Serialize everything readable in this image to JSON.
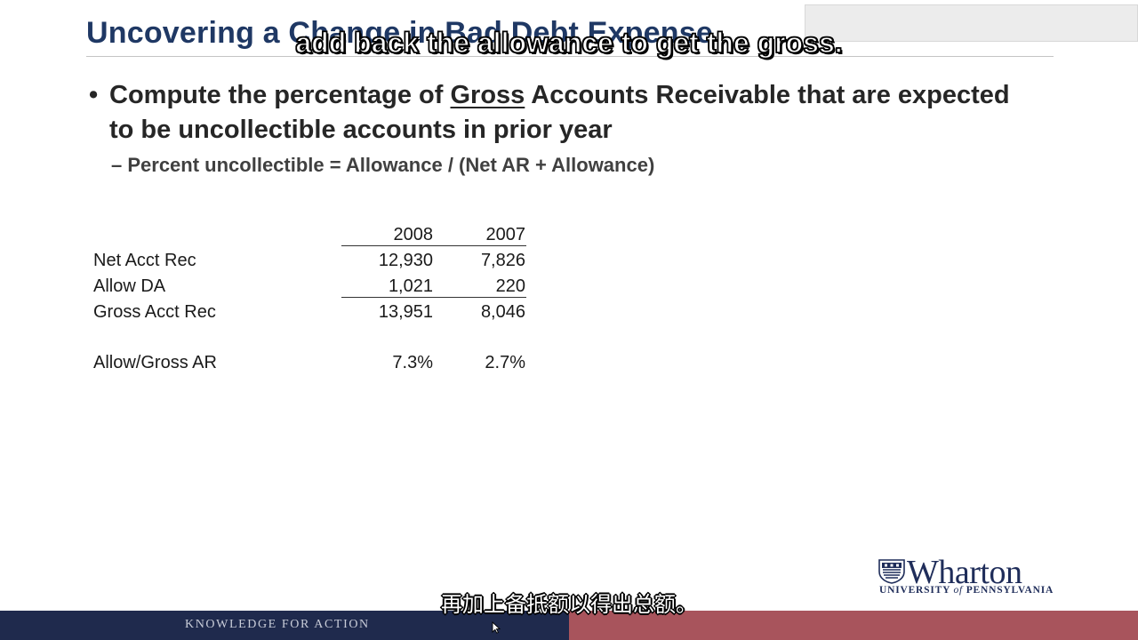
{
  "slide": {
    "title": "Uncovering a Change in Bad Debt Expense",
    "bullet": {
      "text_before": "Compute the percentage of ",
      "underlined": "Gross",
      "text_after": " Accounts Receivable that are expected to be uncollectible accounts in prior year"
    },
    "sub_bullet": "– Percent uncollectible = Allowance / (Net AR + Allowance)"
  },
  "table": {
    "columns": [
      "2008",
      "2007"
    ],
    "rows": [
      {
        "label": "Net Acct Rec",
        "v2008": "12,930",
        "v2007": "7,826"
      },
      {
        "label": "Allow DA",
        "v2008": "1,021",
        "v2007": "220"
      },
      {
        "label": "Gross Acct Rec",
        "v2008": "13,951",
        "v2007": "8,046"
      },
      {
        "label": "Allow/Gross AR",
        "v2008": "7.3%",
        "v2007": "2.7%"
      }
    ]
  },
  "subtitles": {
    "english": "add back the allowance to get the gross.",
    "chinese": "再加上备抵额以得出总额。"
  },
  "logo": {
    "name": "Wharton",
    "sub_left": "UNIVERSITY ",
    "sub_of": "of",
    "sub_right": " PENNSYLVANIA"
  },
  "footer": {
    "tagline": "KNOWLEDGE FOR ACTION"
  },
  "colors": {
    "title": "#1f3864",
    "footer_left": "#1f2a4d",
    "footer_right": "#a8545c",
    "logo": "#1f2d5a"
  },
  "icons": {
    "crest": "shield-crest-icon",
    "cursor": "mouse-pointer-icon"
  }
}
